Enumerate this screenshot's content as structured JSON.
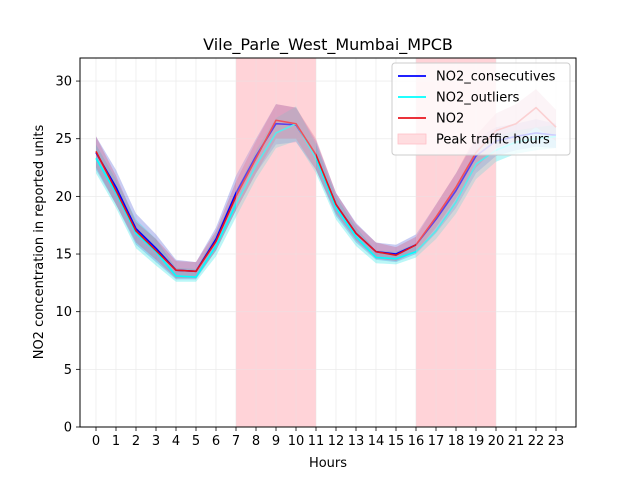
{
  "chart_data": {
    "type": "line",
    "title": "Vile_Parle_West_Mumbai_MPCB",
    "xlabel": "Hours",
    "ylabel": "NO2 concentration in reported units",
    "x": [
      0,
      1,
      2,
      3,
      4,
      5,
      6,
      7,
      8,
      9,
      10,
      11,
      12,
      13,
      14,
      15,
      16,
      17,
      18,
      19,
      20,
      21,
      22,
      23
    ],
    "x_tick_labels": [
      "0",
      "1",
      "2",
      "3",
      "4",
      "5",
      "6",
      "7",
      "8",
      "9",
      "10",
      "11",
      "12",
      "13",
      "14",
      "15",
      "16",
      "17",
      "18",
      "19",
      "20",
      "21",
      "22",
      "23"
    ],
    "xlim": [
      -0.8,
      24.0
    ],
    "ylim": [
      0,
      32
    ],
    "y_ticks": [
      0,
      5,
      10,
      15,
      20,
      25,
      30
    ],
    "y_tick_labels": [
      "0",
      "5",
      "10",
      "15",
      "20",
      "25",
      "30"
    ],
    "grid": true,
    "legend_position": "top-right",
    "peak_traffic_hours": [
      [
        7,
        11
      ],
      [
        16,
        20
      ]
    ],
    "series": [
      {
        "name": "NO2_consecutives",
        "color": "#0000ff",
        "values": [
          23.8,
          20.8,
          17.2,
          15.5,
          13.6,
          13.5,
          16.3,
          20.3,
          23.5,
          26.3,
          26.2,
          23.5,
          19.3,
          16.8,
          15.2,
          15.0,
          15.8,
          18.0,
          20.5,
          23.5,
          24.8,
          25.2,
          25.5,
          25.3
        ],
        "band_lower": [
          22.3,
          19.3,
          15.8,
          14.3,
          12.8,
          12.8,
          15.3,
          18.8,
          22.0,
          24.5,
          24.7,
          22.3,
          18.3,
          16.0,
          14.5,
          14.3,
          15.0,
          16.8,
          19.0,
          22.0,
          23.5,
          24.0,
          24.3,
          24.2
        ],
        "band_upper": [
          25.2,
          22.3,
          18.5,
          16.7,
          14.5,
          14.3,
          17.3,
          21.8,
          25.0,
          28.0,
          27.7,
          24.8,
          20.3,
          17.7,
          16.0,
          15.8,
          16.7,
          19.3,
          22.0,
          25.0,
          26.0,
          26.3,
          26.7,
          26.3
        ]
      },
      {
        "name": "NO2_outliers",
        "color": "#00ffff",
        "values": [
          23.3,
          20.3,
          16.8,
          15.2,
          13.1,
          13.0,
          15.7,
          19.3,
          22.7,
          25.5,
          26.3,
          23.3,
          19.0,
          16.5,
          14.7,
          14.6,
          15.2,
          17.0,
          19.5,
          22.8,
          24.0,
          24.7,
          25.0,
          25.2
        ],
        "band_lower": [
          22.0,
          19.0,
          15.5,
          14.0,
          12.6,
          12.6,
          14.8,
          18.2,
          21.5,
          24.2,
          24.8,
          22.0,
          18.0,
          15.7,
          14.2,
          14.1,
          14.7,
          16.3,
          18.5,
          21.5,
          23.0,
          23.7,
          24.0,
          24.2
        ],
        "band_upper": [
          24.5,
          21.5,
          18.0,
          16.3,
          13.8,
          13.7,
          16.7,
          20.5,
          24.0,
          26.8,
          27.8,
          24.5,
          20.0,
          17.3,
          15.3,
          15.2,
          15.9,
          17.8,
          20.7,
          24.2,
          25.2,
          25.7,
          26.0,
          26.2
        ]
      },
      {
        "name": "NO2",
        "color": "#e8141e",
        "values": [
          23.9,
          20.5,
          17.0,
          15.3,
          13.6,
          13.5,
          16.1,
          20.0,
          23.3,
          26.6,
          26.3,
          23.6,
          19.3,
          16.8,
          15.2,
          14.9,
          15.8,
          18.2,
          20.8,
          23.8,
          25.7,
          26.3,
          27.7,
          26.0
        ],
        "band_lower": [
          22.5,
          19.3,
          16.0,
          14.5,
          12.9,
          12.9,
          15.3,
          18.8,
          22.0,
          25.0,
          25.0,
          22.3,
          18.5,
          16.2,
          14.6,
          14.4,
          15.2,
          17.3,
          19.8,
          22.5,
          24.2,
          24.8,
          26.0,
          24.8
        ],
        "band_upper": [
          25.2,
          21.8,
          17.8,
          16.3,
          14.4,
          14.3,
          17.0,
          21.3,
          24.8,
          28.0,
          27.7,
          25.0,
          20.3,
          17.6,
          16.0,
          15.6,
          16.5,
          19.3,
          22.0,
          25.3,
          27.2,
          28.0,
          29.3,
          27.5
        ]
      }
    ],
    "legend_entries": [
      {
        "label": "NO2_consecutives",
        "color": "#0000ff",
        "kind": "line"
      },
      {
        "label": "NO2_outliers",
        "color": "#00ffff",
        "kind": "line"
      },
      {
        "label": "NO2",
        "color": "#e8141e",
        "kind": "line"
      },
      {
        "label": "Peak traffic hours",
        "color": "#ffdde0",
        "kind": "patch"
      }
    ]
  }
}
